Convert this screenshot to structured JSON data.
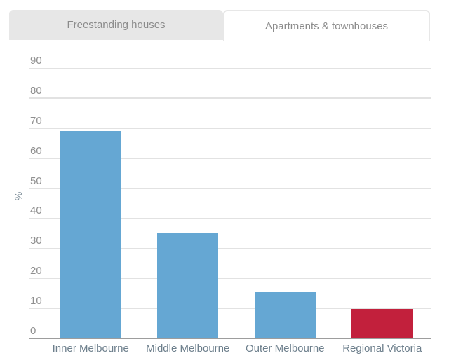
{
  "tabs": [
    {
      "label": "Freestanding houses",
      "active": false
    },
    {
      "label": "Apartments & townhouses",
      "active": true
    }
  ],
  "chart_data": {
    "type": "bar",
    "title": "",
    "categories": [
      "Inner Melbourne",
      "Middle Melbourne",
      "Outer Melbourne",
      "Regional Victoria"
    ],
    "values": [
      69,
      35,
      15.3,
      9.8
    ],
    "bar_colors": [
      "#65a7d3",
      "#65a7d3",
      "#65a7d3",
      "#c2203c"
    ],
    "xlabel": "",
    "ylabel": "%",
    "ylim": [
      0,
      90
    ],
    "yticks": [
      0,
      10,
      20,
      30,
      40,
      50,
      60,
      70,
      80,
      90
    ],
    "grid": true,
    "legend": false,
    "colors": {
      "blue_bar": "#65a7d3",
      "red_bar": "#c2203c",
      "gridline": "#e2e2e2",
      "axis_line": "#9d9d9d",
      "y_tick_text": "#8f8f8f",
      "x_tick_text": "#6d7f8c",
      "tab_inactive_bg": "#e7e7e7",
      "tab_text": "#8b8b8b"
    }
  }
}
